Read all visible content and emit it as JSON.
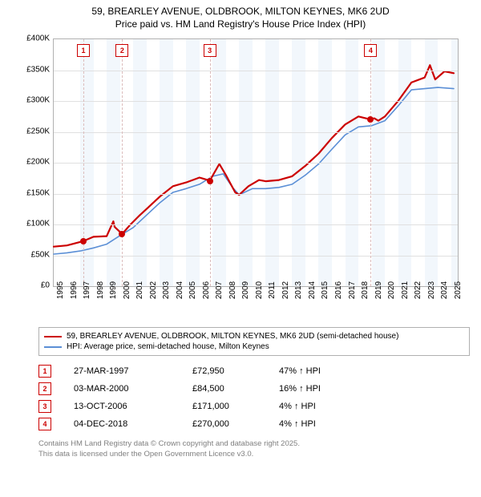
{
  "title": {
    "line1": "59, BREARLEY AVENUE, OLDBROOK, MILTON KEYNES, MK6 2UD",
    "line2": "Price paid vs. HM Land Registry's House Price Index (HPI)"
  },
  "chart": {
    "type": "line",
    "background_color": "#ffffff",
    "grid_color": "#e0e0e0",
    "axis_color": "#b0b0b0",
    "band_color": "#eaf2fa",
    "marker_line_color": "#dcbdbd",
    "marker_box_border": "#cc0000",
    "marker_box_text": "#cc0000",
    "marker_dot_color": "#cc0000",
    "x": {
      "min": 1995,
      "max": 2025.5,
      "tick_start": 1995,
      "tick_step": 1,
      "tick_end": 2025
    },
    "y": {
      "min": 0,
      "max": 400000,
      "tick_step": 50000,
      "tick_labels": [
        "£0",
        "£50K",
        "£100K",
        "£150K",
        "£200K",
        "£250K",
        "£300K",
        "£350K",
        "£400K"
      ]
    },
    "series": [
      {
        "id": "price_paid",
        "label": "59, BREARLEY AVENUE, OLDBROOK, MILTON KEYNES, MK6 2UD (semi-detached house)",
        "color": "#cc0000",
        "width": 2.2,
        "points": [
          [
            1995.0,
            64000
          ],
          [
            1996.0,
            66000
          ],
          [
            1997.24,
            72950
          ],
          [
            1998.0,
            80000
          ],
          [
            1999.0,
            81000
          ],
          [
            1999.5,
            105000
          ],
          [
            1999.6,
            96000
          ],
          [
            2000.17,
            84500
          ],
          [
            2000.8,
            100000
          ],
          [
            2001.5,
            115000
          ],
          [
            2002.0,
            125000
          ],
          [
            2003.0,
            145000
          ],
          [
            2004.0,
            162000
          ],
          [
            2005.0,
            168000
          ],
          [
            2006.0,
            176000
          ],
          [
            2006.78,
            171000
          ],
          [
            2007.5,
            198000
          ],
          [
            2008.0,
            180000
          ],
          [
            2008.7,
            152000
          ],
          [
            2009.0,
            148000
          ],
          [
            2009.7,
            162000
          ],
          [
            2010.5,
            172000
          ],
          [
            2011.0,
            170000
          ],
          [
            2012.0,
            172000
          ],
          [
            2013.0,
            178000
          ],
          [
            2014.0,
            195000
          ],
          [
            2015.0,
            215000
          ],
          [
            2016.0,
            240000
          ],
          [
            2017.0,
            262000
          ],
          [
            2018.0,
            275000
          ],
          [
            2018.93,
            270000
          ],
          [
            2019.2,
            272000
          ],
          [
            2019.5,
            268000
          ],
          [
            2020.0,
            275000
          ],
          [
            2021.0,
            300000
          ],
          [
            2022.0,
            330000
          ],
          [
            2023.0,
            338000
          ],
          [
            2023.4,
            358000
          ],
          [
            2023.8,
            335000
          ],
          [
            2024.5,
            348000
          ],
          [
            2025.2,
            345000
          ]
        ]
      },
      {
        "id": "hpi",
        "label": "HPI: Average price, semi-detached house, Milton Keynes",
        "color": "#5b8fd6",
        "width": 1.6,
        "points": [
          [
            1995.0,
            52000
          ],
          [
            1996.0,
            54000
          ],
          [
            1997.0,
            57000
          ],
          [
            1998.0,
            62000
          ],
          [
            1999.0,
            68000
          ],
          [
            2000.0,
            82000
          ],
          [
            2001.0,
            95000
          ],
          [
            2002.0,
            115000
          ],
          [
            2003.0,
            135000
          ],
          [
            2004.0,
            152000
          ],
          [
            2005.0,
            158000
          ],
          [
            2006.0,
            165000
          ],
          [
            2007.0,
            178000
          ],
          [
            2007.8,
            182000
          ],
          [
            2008.5,
            160000
          ],
          [
            2009.0,
            148000
          ],
          [
            2010.0,
            158000
          ],
          [
            2011.0,
            158000
          ],
          [
            2012.0,
            160000
          ],
          [
            2013.0,
            165000
          ],
          [
            2014.0,
            180000
          ],
          [
            2015.0,
            198000
          ],
          [
            2016.0,
            222000
          ],
          [
            2017.0,
            245000
          ],
          [
            2018.0,
            258000
          ],
          [
            2019.0,
            260000
          ],
          [
            2020.0,
            268000
          ],
          [
            2021.0,
            292000
          ],
          [
            2022.0,
            318000
          ],
          [
            2023.0,
            320000
          ],
          [
            2024.0,
            322000
          ],
          [
            2025.2,
            320000
          ]
        ]
      }
    ],
    "sale_markers": [
      {
        "n": "1",
        "x": 1997.24,
        "y": 72950
      },
      {
        "n": "2",
        "x": 2000.17,
        "y": 84500
      },
      {
        "n": "3",
        "x": 2006.78,
        "y": 171000
      },
      {
        "n": "4",
        "x": 2018.93,
        "y": 270000
      }
    ],
    "bands": [
      {
        "from": 1997,
        "to": 1998
      },
      {
        "from": 1999,
        "to": 2000
      },
      {
        "from": 2001,
        "to": 2002
      },
      {
        "from": 2003,
        "to": 2004
      },
      {
        "from": 2005,
        "to": 2006
      },
      {
        "from": 2007,
        "to": 2008
      },
      {
        "from": 2009,
        "to": 2010
      },
      {
        "from": 2011,
        "to": 2012
      },
      {
        "from": 2013,
        "to": 2014
      },
      {
        "from": 2015,
        "to": 2016
      },
      {
        "from": 2017,
        "to": 2018
      },
      {
        "from": 2019,
        "to": 2020
      },
      {
        "from": 2021,
        "to": 2022
      },
      {
        "from": 2023,
        "to": 2024
      },
      {
        "from": 2025,
        "to": 2025.5
      }
    ]
  },
  "legend": [
    {
      "color": "#cc0000",
      "label": "59, BREARLEY AVENUE, OLDBROOK, MILTON KEYNES, MK6 2UD (semi-detached house)"
    },
    {
      "color": "#5b8fd6",
      "label": "HPI: Average price, semi-detached house, Milton Keynes"
    }
  ],
  "sales": [
    {
      "n": "1",
      "date": "27-MAR-1997",
      "price": "£72,950",
      "pct": "47% ↑ HPI"
    },
    {
      "n": "2",
      "date": "03-MAR-2000",
      "price": "£84,500",
      "pct": "16% ↑ HPI"
    },
    {
      "n": "3",
      "date": "13-OCT-2006",
      "price": "£171,000",
      "pct": "4% ↑ HPI"
    },
    {
      "n": "4",
      "date": "04-DEC-2018",
      "price": "£270,000",
      "pct": "4% ↑ HPI"
    }
  ],
  "footer": {
    "line1": "Contains HM Land Registry data © Crown copyright and database right 2025.",
    "line2": "This data is licensed under the Open Government Licence v3.0."
  }
}
